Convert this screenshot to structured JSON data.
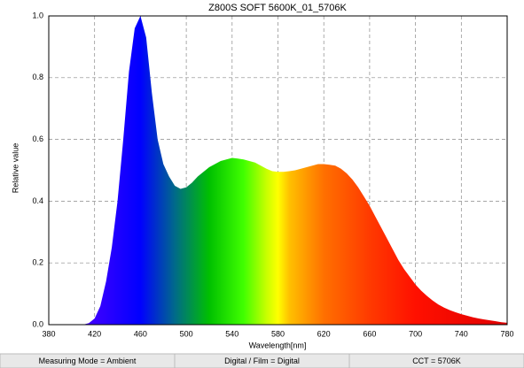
{
  "chart_data": {
    "type": "area",
    "title": "Z800S SOFT 5600K_01_5706K",
    "x_label": "Wavelength[nm]",
    "y_label": "Relative value",
    "x": [
      410,
      415,
      420,
      425,
      430,
      435,
      440,
      445,
      450,
      455,
      460,
      465,
      470,
      475,
      480,
      485,
      490,
      495,
      500,
      505,
      510,
      515,
      520,
      525,
      530,
      535,
      540,
      545,
      550,
      555,
      560,
      565,
      570,
      575,
      580,
      585,
      590,
      595,
      600,
      605,
      610,
      615,
      620,
      625,
      630,
      635,
      640,
      645,
      650,
      655,
      660,
      665,
      670,
      675,
      680,
      685,
      690,
      695,
      700,
      705,
      710,
      715,
      720,
      725,
      730,
      735,
      740,
      745,
      750,
      755,
      760,
      765,
      770,
      775,
      780
    ],
    "values": [
      0,
      0.005,
      0.02,
      0.06,
      0.14,
      0.25,
      0.4,
      0.6,
      0.82,
      0.96,
      1.0,
      0.93,
      0.75,
      0.6,
      0.52,
      0.48,
      0.45,
      0.44,
      0.445,
      0.46,
      0.48,
      0.495,
      0.51,
      0.52,
      0.53,
      0.535,
      0.54,
      0.538,
      0.535,
      0.53,
      0.525,
      0.515,
      0.505,
      0.497,
      0.495,
      0.495,
      0.497,
      0.5,
      0.505,
      0.51,
      0.515,
      0.52,
      0.52,
      0.518,
      0.515,
      0.505,
      0.49,
      0.47,
      0.445,
      0.415,
      0.385,
      0.35,
      0.315,
      0.28,
      0.245,
      0.21,
      0.18,
      0.155,
      0.13,
      0.11,
      0.093,
      0.078,
      0.065,
      0.055,
      0.047,
      0.04,
      0.034,
      0.029,
      0.024,
      0.02,
      0.017,
      0.014,
      0.011,
      0.008,
      0.006
    ],
    "xlim": [
      380,
      780
    ],
    "xticks": [
      380,
      420,
      460,
      500,
      540,
      580,
      620,
      660,
      700,
      740,
      780
    ],
    "ylim": [
      0,
      1.0
    ],
    "yticks": [
      {
        "value": 0,
        "label": "0.0"
      },
      0.2,
      0.4,
      0.6,
      0.8,
      {
        "value": 1.0,
        "label": "1.0"
      }
    ],
    "grid": true
  },
  "status_bar": {
    "items": [
      "Measuring Mode = Ambient",
      "Digital / Film = Digital",
      "CCT = 5706K"
    ]
  }
}
